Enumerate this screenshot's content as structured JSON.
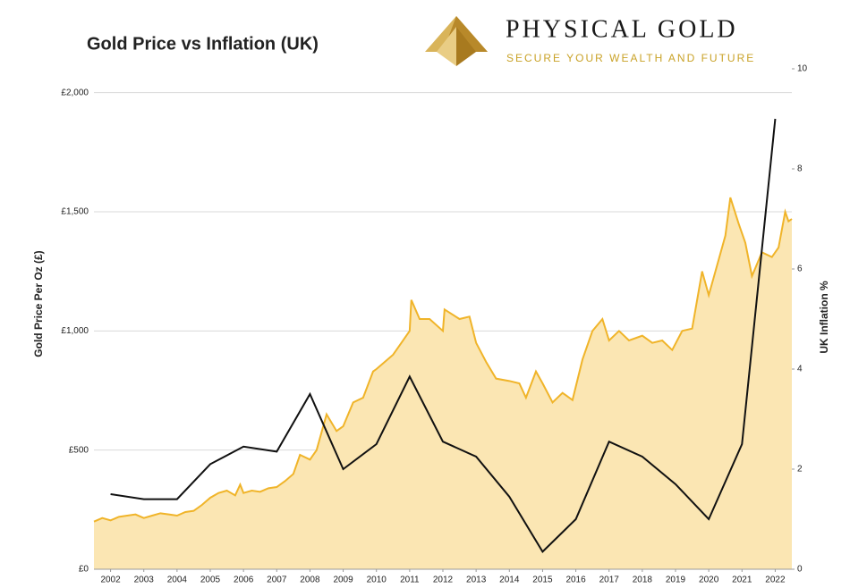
{
  "chart_data": {
    "type": "line",
    "title": "Gold Price vs Inflation (UK)",
    "logo": {
      "name": "PHYSICAL GOLD",
      "tagline": "SECURE YOUR WEALTH AND FUTURE"
    },
    "y_label": "Gold Price Per Oz (£)",
    "y2_label": "UK Inflation %",
    "xlim": [
      2001.5,
      2022.5
    ],
    "xticks": [
      2002,
      2003,
      2004,
      2005,
      2006,
      2007,
      2008,
      2009,
      2010,
      2011,
      2012,
      2013,
      2014,
      2015,
      2016,
      2017,
      2018,
      2019,
      2020,
      2021,
      2022
    ],
    "ylim": [
      0,
      2100
    ],
    "yticks": [
      {
        "value": 0,
        "label": "£0"
      },
      {
        "value": 500,
        "label": "£500"
      },
      {
        "value": 1000,
        "label": "£1,000"
      },
      {
        "value": 1500,
        "label": "£1,500"
      },
      {
        "value": 2000,
        "label": "£2,000"
      }
    ],
    "y2lim": [
      0,
      10
    ],
    "y2ticks": [
      0,
      2,
      4,
      6,
      8,
      10
    ],
    "grid": true,
    "series": [
      {
        "color": "#f0b429",
        "fill": "#fbe6b3",
        "area": true,
        "x": [
          2001.5,
          2001.75,
          2002,
          2002.25,
          2002.5,
          2002.75,
          2003,
          2003.25,
          2003.5,
          2003.75,
          2004,
          2004.25,
          2004.5,
          2004.75,
          2005,
          2005.25,
          2005.5,
          2005.75,
          2005.9,
          2006,
          2006.25,
          2006.5,
          2006.75,
          2007,
          2007.25,
          2007.5,
          2007.7,
          2008,
          2008.2,
          2008.5,
          2008.8,
          2009,
          2009.3,
          2009.6,
          2009.9,
          2010,
          2010.25,
          2010.5,
          2010.75,
          2011,
          2011.05,
          2011.3,
          2011.6,
          2012,
          2012.05,
          2012.5,
          2012.8,
          2013,
          2013.3,
          2013.6,
          2014,
          2014.3,
          2014.5,
          2014.8,
          2015,
          2015.3,
          2015.6,
          2015.9,
          2016.2,
          2016.5,
          2016.8,
          2017,
          2017.3,
          2017.6,
          2018,
          2018.3,
          2018.6,
          2018.9,
          2019.2,
          2019.5,
          2019.8,
          2020,
          2020.3,
          2020.5,
          2020.65,
          2020.9,
          2021.1,
          2021.3,
          2021.6,
          2021.9,
          2022.1,
          2022.3,
          2022.4,
          2022.5
        ],
        "values": [
          200,
          215,
          205,
          220,
          225,
          230,
          215,
          225,
          235,
          230,
          225,
          240,
          245,
          270,
          300,
          320,
          330,
          310,
          355,
          320,
          330,
          325,
          340,
          345,
          370,
          400,
          480,
          460,
          500,
          650,
          580,
          600,
          700,
          720,
          830,
          840,
          870,
          900,
          950,
          1000,
          1130,
          1050,
          1050,
          1000,
          1090,
          1050,
          1060,
          950,
          870,
          800,
          790,
          780,
          720,
          830,
          780,
          700,
          740,
          710,
          880,
          1000,
          1050,
          960,
          1000,
          960,
          980,
          950,
          960,
          920,
          1000,
          1010,
          1250,
          1150,
          1300,
          1400,
          1560,
          1450,
          1370,
          1230,
          1330,
          1310,
          1350,
          1500,
          1460,
          1470
        ]
      },
      {
        "color": "#111111",
        "axis": "y2",
        "x": [
          2002,
          2003,
          2004,
          2005,
          2006,
          2007,
          2008,
          2009,
          2010,
          2011,
          2012,
          2013,
          2014,
          2015,
          2016,
          2017,
          2018,
          2019,
          2020,
          2021,
          2022
        ],
        "values": [
          1.5,
          1.4,
          1.4,
          2.1,
          2.45,
          2.35,
          3.5,
          2.0,
          2.5,
          3.85,
          2.55,
          2.25,
          1.45,
          0.35,
          1.0,
          2.55,
          2.25,
          1.7,
          1.0,
          2.5,
          9.0
        ]
      }
    ]
  }
}
